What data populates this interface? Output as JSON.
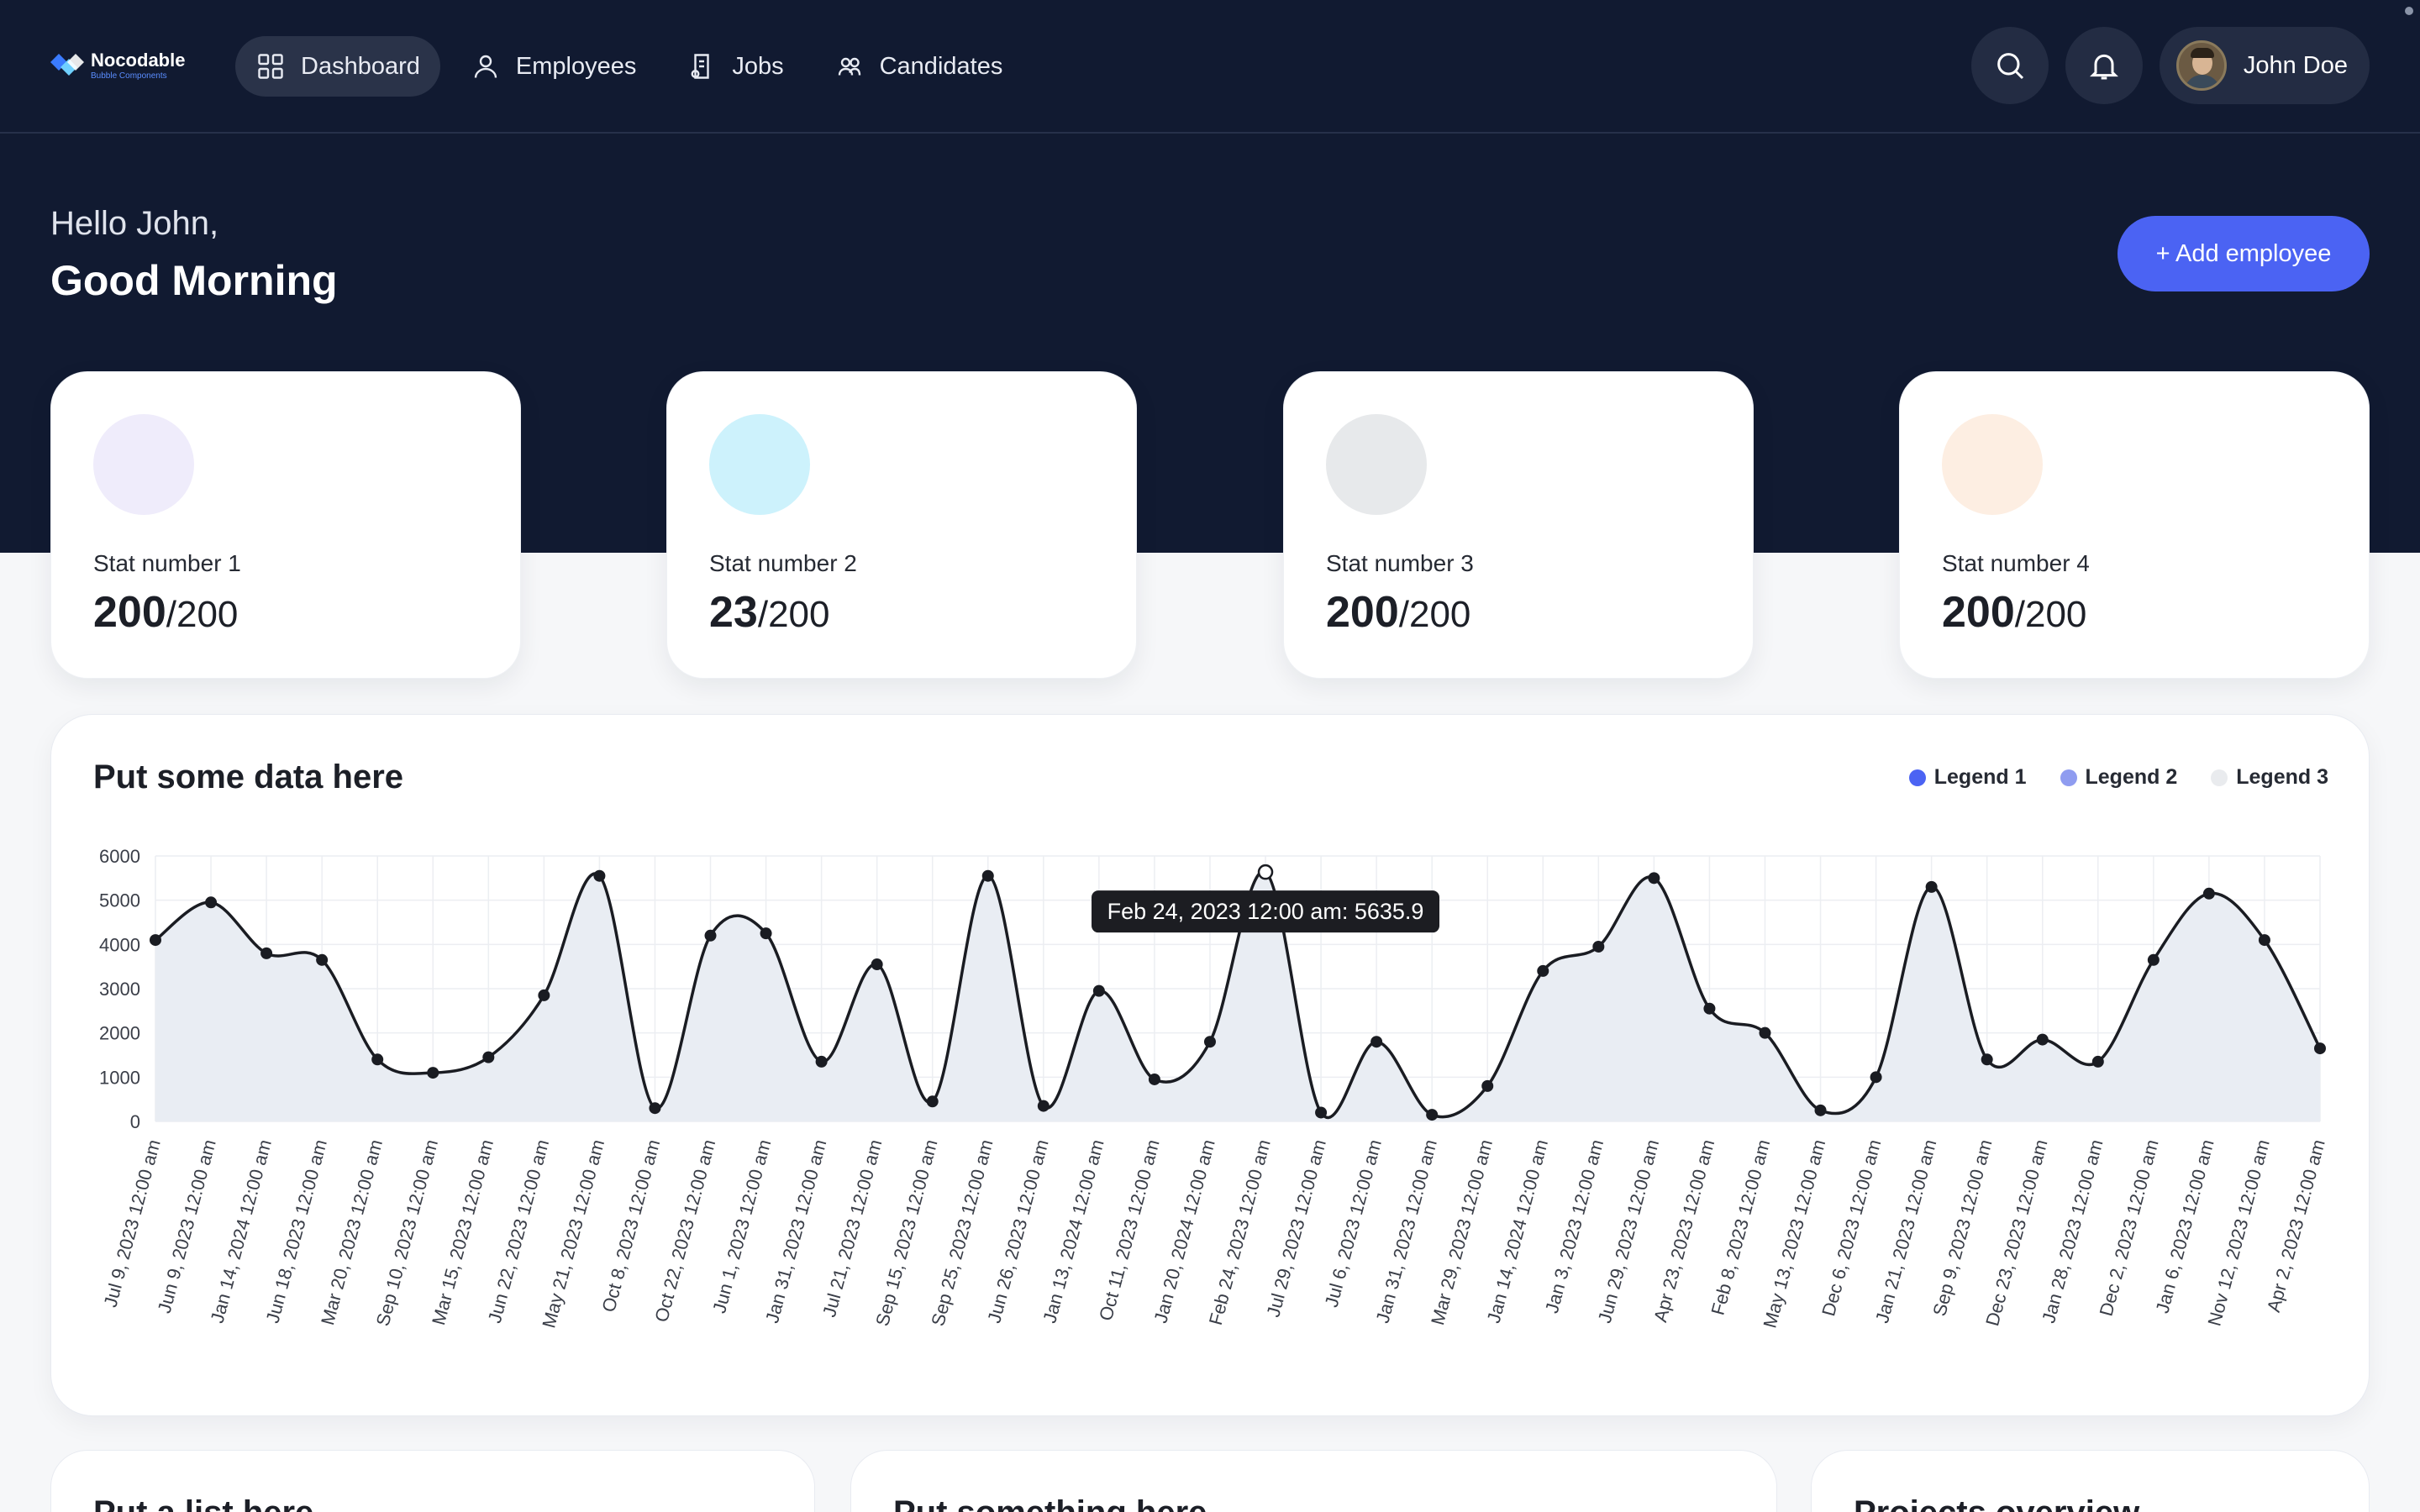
{
  "app": {
    "logo_name": "Nocodable",
    "logo_sub": "Bubble Components"
  },
  "nav": {
    "items": [
      {
        "label": "Dashboard",
        "icon": "grid-icon",
        "active": true
      },
      {
        "label": "Employees",
        "icon": "user-icon",
        "active": false
      },
      {
        "label": "Jobs",
        "icon": "document-icon",
        "active": false
      },
      {
        "label": "Candidates",
        "icon": "users-icon",
        "active": false
      }
    ],
    "search_icon": "search-icon",
    "bell_icon": "bell-icon",
    "user_name": "John Doe"
  },
  "greeting": {
    "hello": "Hello John,",
    "message": "Good Morning"
  },
  "actions": {
    "add_employee": "+ Add employee"
  },
  "stats": [
    {
      "label": "Stat number 1",
      "value": "200",
      "total": "/200",
      "color": "#efecfb"
    },
    {
      "label": "Stat number 2",
      "value": "23",
      "total": "/200",
      "color": "#cdf2fc"
    },
    {
      "label": "Stat number 3",
      "value": "200",
      "total": "/200",
      "color": "#e7e9eb"
    },
    {
      "label": "Stat number 4",
      "value": "200",
      "total": "/200",
      "color": "#fdeee2"
    }
  ],
  "chart_card": {
    "title": "Put some data here",
    "legend": [
      {
        "label": "Legend 1",
        "color": "#4b63f3"
      },
      {
        "label": "Legend 2",
        "color": "#8f9cf0"
      },
      {
        "label": "Legend 3",
        "color": "#e9ebee"
      }
    ],
    "tooltip": "Feb 24, 2023 12:00 am: 5635.9"
  },
  "chart_data": {
    "type": "area",
    "ylim": [
      0,
      6000
    ],
    "yticks": [
      0,
      1000,
      2000,
      3000,
      4000,
      5000,
      6000
    ],
    "grid": true,
    "line_color": "#1a1c22",
    "fill_color": "#e9edf3",
    "highlight_index": 20,
    "x": [
      "Jul 9, 2023 12:00 am",
      "Jun 9, 2023 12:00 am",
      "Jan 14, 2024 12:00 am",
      "Jun 18, 2023 12:00 am",
      "Mar 20, 2023 12:00 am",
      "Sep 10, 2023 12:00 am",
      "Mar 15, 2023 12:00 am",
      "Jun 22, 2023 12:00 am",
      "May 21, 2023 12:00 am",
      "Oct 8, 2023 12:00 am",
      "Oct 22, 2023 12:00 am",
      "Jun 1, 2023 12:00 am",
      "Jan 31, 2023 12:00 am",
      "Jul 21, 2023 12:00 am",
      "Sep 15, 2023 12:00 am",
      "Sep 25, 2023 12:00 am",
      "Jun 26, 2023 12:00 am",
      "Jan 13, 2024 12:00 am",
      "Oct 11, 2023 12:00 am",
      "Jan 20, 2024 12:00 am",
      "Feb 24, 2023 12:00 am",
      "Jul 29, 2023 12:00 am",
      "Jul 6, 2023 12:00 am",
      "Jan 31, 2023 12:00 am",
      "Mar 29, 2023 12:00 am",
      "Jan 14, 2024 12:00 am",
      "Jan 3, 2023 12:00 am",
      "Jun 29, 2023 12:00 am",
      "Apr 23, 2023 12:00 am",
      "Feb 8, 2023 12:00 am",
      "May 13, 2023 12:00 am",
      "Dec 6, 2023 12:00 am",
      "Jan 21, 2023 12:00 am",
      "Sep 9, 2023 12:00 am",
      "Dec 23, 2023 12:00 am",
      "Jan 28, 2023 12:00 am",
      "Dec 2, 2023 12:00 am",
      "Jan 6, 2023 12:00 am",
      "Nov 12, 2023 12:00 am",
      "Apr 2, 2023 12:00 am"
    ],
    "values": [
      4100,
      4950,
      3800,
      3650,
      1400,
      1100,
      1450,
      2850,
      5550,
      300,
      4200,
      4250,
      1350,
      3550,
      450,
      5550,
      350,
      2950,
      950,
      1800,
      5635.9,
      200,
      1800,
      150,
      800,
      3400,
      3950,
      5500,
      2550,
      2000,
      250,
      1000,
      5300,
      1400,
      1850,
      1350,
      3650,
      5150,
      4100,
      1650
    ]
  },
  "bottom_cards": [
    {
      "title": "Put a list here"
    },
    {
      "title": "Put something here"
    },
    {
      "title": "Projects overview"
    }
  ]
}
